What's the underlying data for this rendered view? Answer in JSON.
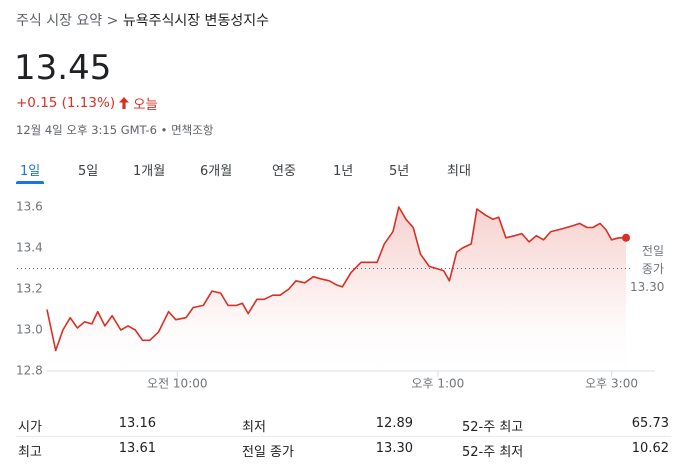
{
  "header": {
    "breadcrumb": [
      "주식 시장 요약",
      "뉴욕주식시장 변동성지수"
    ],
    "breadcrumb_separator": ">",
    "price": "13.45",
    "change": "+0.15 (1.13%)",
    "change_period": "오늘",
    "timestamp": "12월 4일 오후 3:15 GMT-6 • 면책조항"
  },
  "tabs": {
    "items": [
      "1일",
      "5일",
      "1개월",
      "6개월",
      "연중",
      "1년",
      "5년",
      "최대"
    ],
    "selected": 0
  },
  "chart_data": {
    "type": "line",
    "series": [
      {
        "color": "#d93025",
        "x": [
          510,
          516,
          521,
          526,
          531,
          536,
          541,
          545,
          550,
          555,
          561,
          566,
          571,
          576,
          581,
          587,
          594,
          599,
          606,
          611,
          618,
          624,
          630,
          635,
          641,
          645,
          649,
          655,
          660,
          666,
          671,
          677,
          682,
          688,
          694,
          699,
          705,
          710,
          714,
          720,
          727,
          734,
          738,
          743,
          749,
          753,
          758,
          763,
          768,
          774,
          779,
          784,
          788,
          793,
          797,
          803,
          807,
          813,
          818,
          822,
          827,
          833,
          838,
          843,
          848,
          853,
          858,
          864,
          869,
          874,
          878,
          883,
          887,
          892,
          896,
          900,
          905,
          910
        ],
        "values": [
          13.1,
          12.9,
          13.0,
          13.06,
          13.01,
          13.04,
          13.03,
          13.09,
          13.02,
          13.07,
          13.0,
          13.02,
          13.0,
          12.95,
          12.95,
          12.99,
          13.09,
          13.05,
          13.06,
          13.11,
          13.12,
          13.19,
          13.18,
          13.12,
          13.12,
          13.13,
          13.08,
          13.15,
          13.15,
          13.17,
          13.17,
          13.2,
          13.24,
          13.23,
          13.26,
          13.25,
          13.24,
          13.22,
          13.21,
          13.28,
          13.33,
          13.33,
          13.33,
          13.42,
          13.48,
          13.6,
          13.54,
          13.5,
          13.37,
          13.31,
          13.3,
          13.29,
          13.24,
          13.38,
          13.4,
          13.42,
          13.59,
          13.56,
          13.54,
          13.55,
          13.45,
          13.46,
          13.47,
          13.43,
          13.46,
          13.44,
          13.48,
          13.49,
          13.5,
          13.51,
          13.52,
          13.5,
          13.5,
          13.52,
          13.49,
          13.44,
          13.45,
          13.45
        ]
      }
    ],
    "xlim": [
      510,
      930
    ],
    "xticks": [
      {
        "value": 600,
        "label": "오전 10:00"
      },
      {
        "value": 780,
        "label": "오후 1:00"
      },
      {
        "value": 900,
        "label": "오후 3:00"
      }
    ],
    "ylim": [
      12.8,
      13.6
    ],
    "yticks": [
      12.8,
      {
        "value": 13,
        "label": "13.0"
      },
      13.2,
      13.4,
      13.6
    ],
    "grid": false,
    "previous_close": {
      "value": 13.3,
      "label": "13.30"
    },
    "previous_close_label": "전일 종가"
  },
  "stats": [
    [
      {
        "label": "시가",
        "value": "13.16"
      },
      {
        "label": "최저",
        "value": "12.89"
      },
      {
        "label": "52-주 최고",
        "value": "65.73"
      }
    ],
    [
      {
        "label": "최고",
        "value": "13.61"
      },
      {
        "label": "전일 종가",
        "value": "13.30"
      },
      {
        "label": "52-주 최저",
        "value": "10.62"
      }
    ]
  ]
}
